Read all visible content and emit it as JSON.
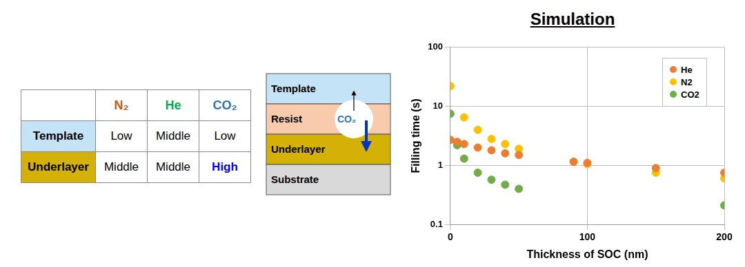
{
  "table": {
    "columns": [
      "N₂",
      "He",
      "CO₂"
    ],
    "rows": [
      {
        "label": "Template",
        "cells": [
          "Low",
          "Middle",
          "Low"
        ]
      },
      {
        "label": "Underlayer",
        "cells": [
          "Middle",
          "Middle",
          "High"
        ]
      }
    ]
  },
  "diagram": {
    "layers": [
      "Template",
      "Resist",
      "Underlayer",
      "Substrate"
    ],
    "bubble": "CO₂"
  },
  "chart_data": {
    "type": "scatter",
    "title": "Simulation",
    "x_label": "Thickness of SOC (nm)",
    "y_label": "Filling time (s)",
    "xlim": [
      0,
      200
    ],
    "xticks": [
      0,
      100,
      200
    ],
    "ylim": [
      0.1,
      100
    ],
    "yticks": [
      0.1,
      1,
      10,
      100
    ],
    "log": "y",
    "grid": true,
    "legend": "top-right",
    "marker": "circle",
    "series": [
      {
        "name": "He",
        "color": "#ed7d31",
        "x": [
          0,
          5,
          10,
          20,
          30,
          40,
          50,
          90,
          100,
          150,
          200
        ],
        "values": [
          2.7,
          2.5,
          2.3,
          2.0,
          1.8,
          1.6,
          1.5,
          1.15,
          1.1,
          0.9,
          0.75
        ]
      },
      {
        "name": "N2",
        "color": "#ffc000",
        "x": [
          0,
          10,
          20,
          30,
          40,
          50,
          90,
          100,
          150,
          200
        ],
        "values": [
          22,
          6.5,
          4.0,
          2.8,
          2.3,
          1.9,
          1.15,
          1.05,
          0.75,
          0.6
        ]
      },
      {
        "name": "CO2",
        "color": "#70ad47",
        "x": [
          0,
          5,
          10,
          20,
          30,
          40,
          50,
          200
        ],
        "values": [
          7.5,
          2.2,
          1.3,
          0.75,
          0.57,
          0.47,
          0.4,
          0.21
        ]
      }
    ]
  }
}
